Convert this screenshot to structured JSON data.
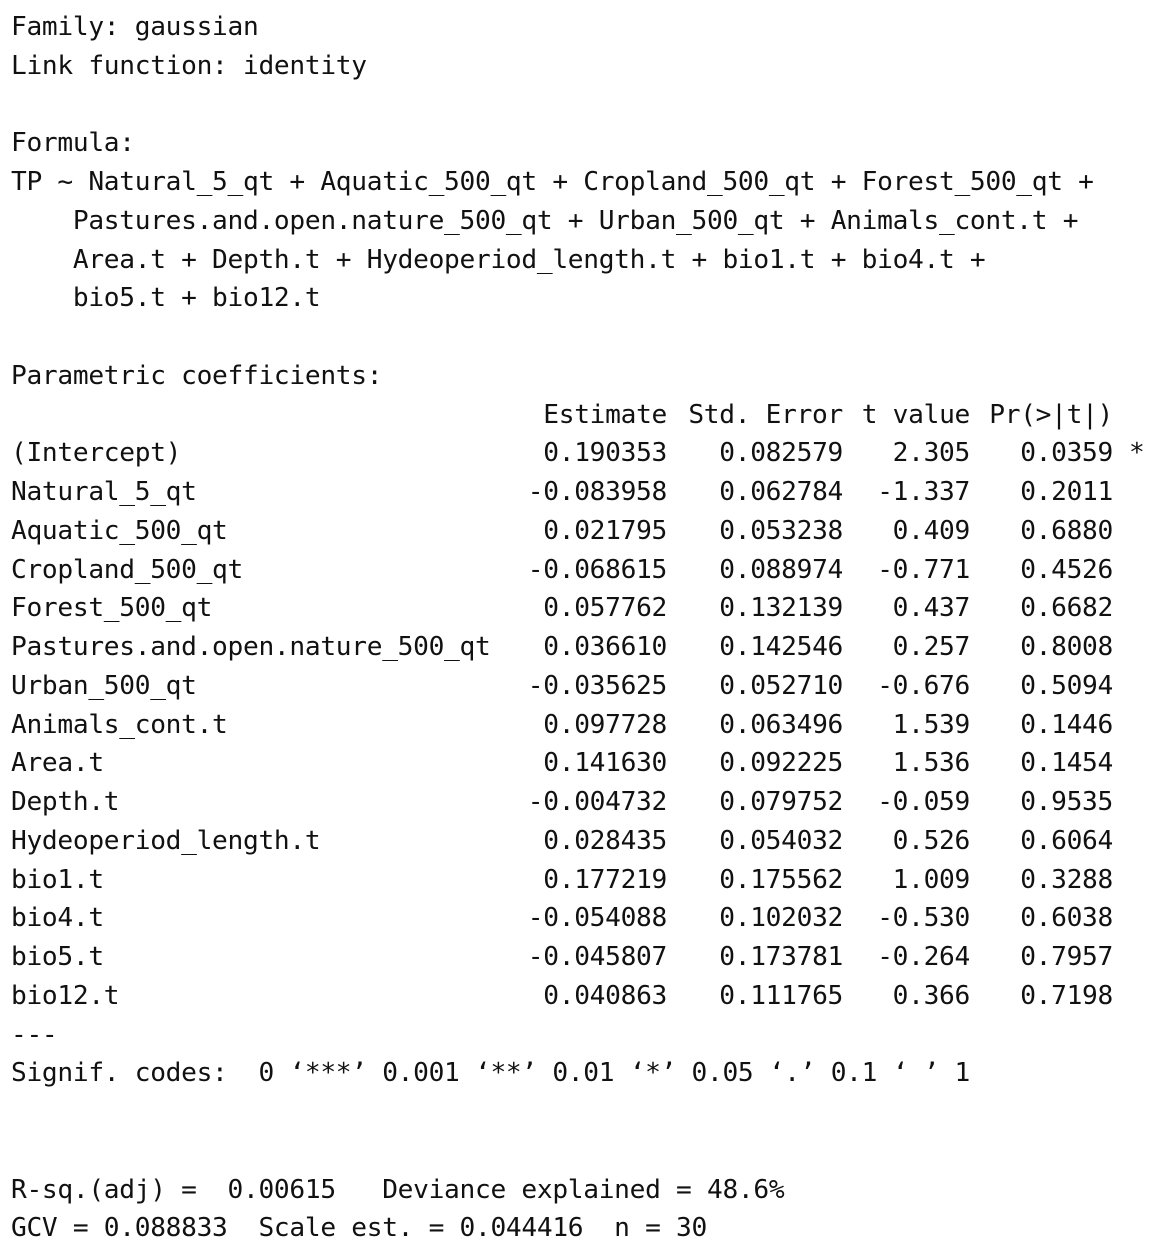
{
  "family_line": "Family: gaussian",
  "link_line": "Link function: identity",
  "formula_label": "Formula:",
  "formula_lines": [
    "TP ~ Natural_5_qt + Aquatic_500_qt + Cropland_500_qt + Forest_500_qt +",
    "    Pastures.and.open.nature_500_qt + Urban_500_qt + Animals_cont.t +",
    "    Area.t + Depth.t + Hydeoperiod_length.t + bio1.t + bio4.t +",
    "    bio5.t + bio12.t"
  ],
  "coef_section_label": "Parametric coefficients:",
  "table": {
    "headers": {
      "estimate": "Estimate",
      "std_error": "Std. Error",
      "t_value": "t value",
      "p_value": "Pr(>|t|)"
    },
    "rows": [
      {
        "term": "(Intercept)",
        "estimate": "0.190353",
        "std_error": "0.082579",
        "t_value": "2.305",
        "p_value": "0.0359",
        "signif": "*"
      },
      {
        "term": "Natural_5_qt",
        "estimate": "-0.083958",
        "std_error": "0.062784",
        "t_value": "-1.337",
        "p_value": "0.2011",
        "signif": ""
      },
      {
        "term": "Aquatic_500_qt",
        "estimate": "0.021795",
        "std_error": "0.053238",
        "t_value": "0.409",
        "p_value": "0.6880",
        "signif": ""
      },
      {
        "term": "Cropland_500_qt",
        "estimate": "-0.068615",
        "std_error": "0.088974",
        "t_value": "-0.771",
        "p_value": "0.4526",
        "signif": ""
      },
      {
        "term": "Forest_500_qt",
        "estimate": "0.057762",
        "std_error": "0.132139",
        "t_value": "0.437",
        "p_value": "0.6682",
        "signif": ""
      },
      {
        "term": "Pastures.and.open.nature_500_qt",
        "estimate": "0.036610",
        "std_error": "0.142546",
        "t_value": "0.257",
        "p_value": "0.8008",
        "signif": ""
      },
      {
        "term": "Urban_500_qt",
        "estimate": "-0.035625",
        "std_error": "0.052710",
        "t_value": "-0.676",
        "p_value": "0.5094",
        "signif": ""
      },
      {
        "term": "Animals_cont.t",
        "estimate": "0.097728",
        "std_error": "0.063496",
        "t_value": "1.539",
        "p_value": "0.1446",
        "signif": ""
      },
      {
        "term": "Area.t",
        "estimate": "0.141630",
        "std_error": "0.092225",
        "t_value": "1.536",
        "p_value": "0.1454",
        "signif": ""
      },
      {
        "term": "Depth.t",
        "estimate": "-0.004732",
        "std_error": "0.079752",
        "t_value": "-0.059",
        "p_value": "0.9535",
        "signif": ""
      },
      {
        "term": "Hydeoperiod_length.t",
        "estimate": "0.028435",
        "std_error": "0.054032",
        "t_value": "0.526",
        "p_value": "0.6064",
        "signif": ""
      },
      {
        "term": "bio1.t",
        "estimate": "0.177219",
        "std_error": "0.175562",
        "t_value": "1.009",
        "p_value": "0.3288",
        "signif": ""
      },
      {
        "term": "bio4.t",
        "estimate": "-0.054088",
        "std_error": "0.102032",
        "t_value": "-0.530",
        "p_value": "0.6038",
        "signif": ""
      },
      {
        "term": "bio5.t",
        "estimate": "-0.045807",
        "std_error": "0.173781",
        "t_value": "-0.264",
        "p_value": "0.7957",
        "signif": ""
      },
      {
        "term": "bio12.t",
        "estimate": "0.040863",
        "std_error": "0.111765",
        "t_value": "0.366",
        "p_value": "0.7198",
        "signif": ""
      }
    ]
  },
  "separator": "---",
  "signif_codes": "Signif. codes:  0 ‘***’ 0.001 ‘**’ 0.01 ‘*’ 0.05 ‘.’ 0.1 ‘ ’ 1",
  "fit_line1": "R-sq.(adj) =  0.00615   Deviance explained = 48.6%",
  "fit_line2": "GCV = 0.088833  Scale est. = 0.044416  n = 30"
}
